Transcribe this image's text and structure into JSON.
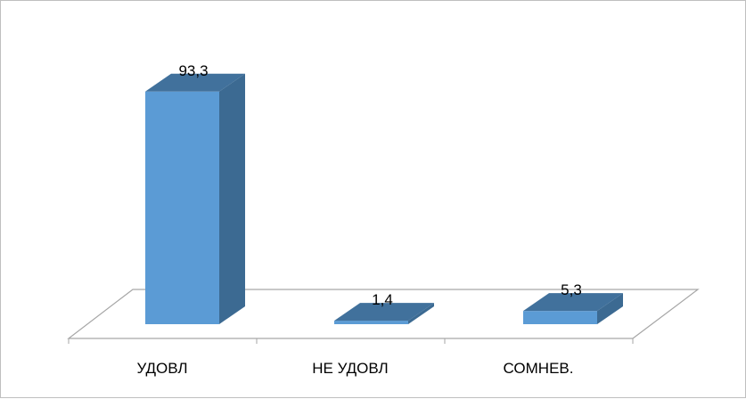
{
  "chart_data": {
    "type": "bar",
    "categories": [
      "УДОВЛ",
      "НЕ УДОВЛ",
      "СОМНЕВ."
    ],
    "values": [
      93.3,
      1.4,
      5.3
    ],
    "value_labels": [
      "93,3",
      "1,4",
      "5,3"
    ],
    "title": "",
    "xlabel": "",
    "ylabel": "",
    "ylim": [
      0,
      100
    ],
    "grid": false,
    "legend": "none",
    "style": "3d-column",
    "colors": {
      "front": "#5b9bd5",
      "top": "#41719c",
      "side": "#3c6a92",
      "floor_stroke": "#a6a6a6"
    }
  }
}
